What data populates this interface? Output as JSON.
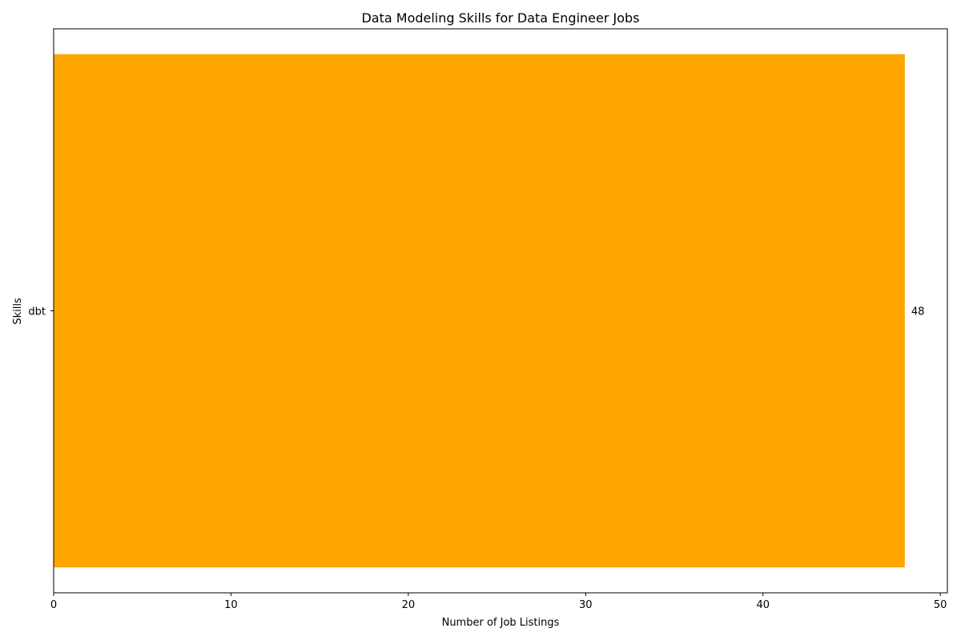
{
  "chart_data": {
    "type": "bar",
    "orientation": "horizontal",
    "title": "Data Modeling Skills for Data Engineer Jobs",
    "xlabel": "Number of Job Listings",
    "ylabel": "Skills",
    "categories": [
      "dbt"
    ],
    "values": [
      48
    ],
    "data_labels": [
      "48"
    ],
    "xlim": [
      0,
      50.4
    ],
    "xticks": [
      0,
      10,
      20,
      30,
      40,
      50
    ],
    "grid": false,
    "legend": "none",
    "bar_color": "#FFA500"
  }
}
